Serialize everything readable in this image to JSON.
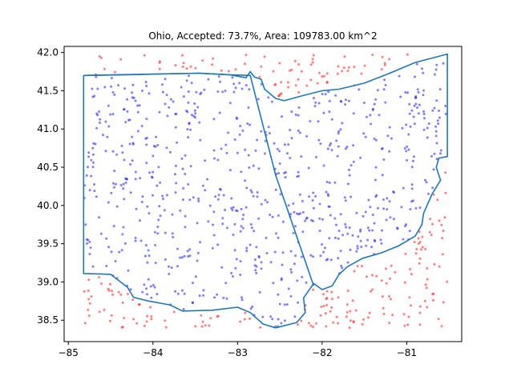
{
  "chart_data": {
    "type": "scatter",
    "title": "Ohio, Accepted: 73.7%, Area: 109783.00 km^2",
    "xlabel": "",
    "ylabel": "",
    "xlim": [
      -85.05,
      -80.35
    ],
    "ylim": [
      38.22,
      42.08
    ],
    "x_ticks": [
      -85,
      -84,
      -83,
      -82,
      -81
    ],
    "x_tick_labels": [
      "−85",
      "−84",
      "−83",
      "−82",
      "−81"
    ],
    "y_ticks": [
      38.5,
      39.0,
      39.5,
      40.0,
      40.5,
      41.0,
      41.5,
      42.0
    ],
    "y_tick_labels": [
      "38.5",
      "39.0",
      "39.5",
      "40.0",
      "40.5",
      "41.0",
      "41.5",
      "42.0"
    ],
    "grid": false,
    "sample_bounds": {
      "x": [
        -84.82,
        -80.52
      ],
      "y": [
        38.4,
        41.98
      ]
    },
    "accepted_fraction": 0.737,
    "accepted_color": "#0000ff",
    "rejected_color": "#ff0000",
    "boundary_color": "#1f77b4",
    "boundary": [
      [
        -84.82,
        41.7
      ],
      [
        -84.3,
        41.71
      ],
      [
        -83.9,
        41.72
      ],
      [
        -83.45,
        41.73
      ],
      [
        -83.1,
        41.71
      ],
      [
        -82.9,
        41.67
      ],
      [
        -82.85,
        41.75
      ],
      [
        -82.8,
        41.68
      ],
      [
        -82.72,
        41.65
      ],
      [
        -82.68,
        41.52
      ],
      [
        -82.55,
        41.4
      ],
      [
        -82.45,
        41.37
      ],
      [
        -82.25,
        41.43
      ],
      [
        -82.0,
        41.5
      ],
      [
        -81.8,
        41.52
      ],
      [
        -81.5,
        41.6
      ],
      [
        -81.2,
        41.73
      ],
      [
        -80.9,
        41.87
      ],
      [
        -80.52,
        41.98
      ],
      [
        -80.52,
        40.64
      ],
      [
        -80.62,
        40.62
      ],
      [
        -80.65,
        40.5
      ],
      [
        -80.6,
        40.33
      ],
      [
        -80.7,
        40.15
      ],
      [
        -80.8,
        39.9
      ],
      [
        -80.82,
        39.75
      ],
      [
        -80.9,
        39.6
      ],
      [
        -81.1,
        39.47
      ],
      [
        -81.3,
        39.38
      ],
      [
        -81.52,
        39.31
      ],
      [
        -81.7,
        39.2
      ],
      [
        -81.8,
        39.1
      ],
      [
        -81.88,
        38.95
      ],
      [
        -82.0,
        38.9
      ],
      [
        -82.1,
        38.98
      ],
      [
        -82.22,
        38.79
      ],
      [
        -82.2,
        38.6
      ],
      [
        -82.3,
        38.47
      ],
      [
        -82.55,
        38.4
      ],
      [
        -82.7,
        38.45
      ],
      [
        -82.85,
        38.6
      ],
      [
        -83.0,
        38.67
      ],
      [
        -83.3,
        38.63
      ],
      [
        -83.65,
        38.62
      ],
      [
        -83.8,
        38.7
      ],
      [
        -84.05,
        38.75
      ],
      [
        -84.23,
        38.8
      ],
      [
        -84.3,
        38.93
      ],
      [
        -84.5,
        39.1
      ],
      [
        -84.82,
        39.11
      ],
      [
        -84.82,
        41.7
      ]
    ],
    "michigan_line": [
      [
        -84.82,
        41.7
      ],
      [
        -83.45,
        41.73
      ],
      [
        -83.1,
        41.71
      ],
      [
        -82.85,
        41.7
      ],
      [
        -82.55,
        40.4
      ],
      [
        -82.1,
        38.95
      ]
    ],
    "series": [
      {
        "name": "",
        "role": "accepted",
        "points": []
      },
      {
        "name": "",
        "role": "rejected",
        "points": []
      }
    ]
  }
}
